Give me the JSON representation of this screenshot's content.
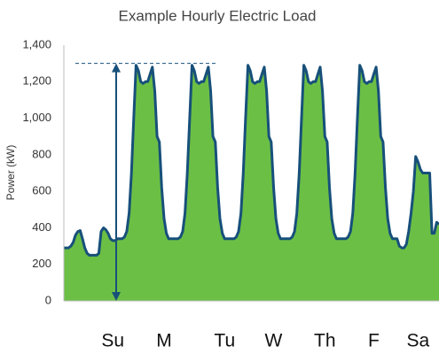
{
  "chart_data": {
    "type": "area",
    "title": "Example Hourly Electric Load",
    "y_label": "Power (kW)",
    "fill_color": "#6cbf45",
    "line_color": "#17507a",
    "reference_line": {
      "value": 1300,
      "color": "#17507a"
    },
    "x": [
      0,
      1,
      2,
      3,
      4,
      5,
      6,
      7,
      8,
      9,
      10,
      11,
      12,
      13,
      14,
      15,
      16,
      17,
      18,
      19,
      20,
      21,
      22,
      23,
      24,
      25,
      26,
      27,
      28,
      29,
      30,
      31,
      32,
      33,
      34,
      35,
      36,
      37,
      38,
      39,
      40,
      41,
      42,
      43,
      44,
      45,
      46,
      47,
      48,
      49,
      50,
      51,
      52,
      53,
      54,
      55,
      56,
      57,
      58,
      59,
      60,
      61,
      62,
      63,
      64,
      65,
      66,
      67,
      68,
      69,
      70,
      71,
      72,
      73,
      74,
      75,
      76,
      77,
      78,
      79,
      80,
      81,
      82,
      83,
      84,
      85,
      86,
      87,
      88,
      89,
      90,
      91,
      92,
      93,
      94,
      95,
      96,
      97,
      98,
      99,
      100,
      101,
      102,
      103,
      104,
      105,
      106,
      107,
      108,
      109,
      110,
      111,
      112,
      113,
      114,
      115,
      116,
      117,
      118,
      119,
      120,
      121,
      122,
      123,
      124,
      125,
      126,
      127,
      128,
      129,
      130,
      131,
      132,
      133,
      134,
      135,
      136,
      137,
      138,
      139,
      140,
      141,
      142,
      143,
      144,
      145,
      146,
      147,
      148,
      149,
      150,
      151,
      152,
      153,
      154,
      155,
      156,
      157,
      158,
      159,
      160,
      161
    ],
    "values": [
      290,
      290,
      290,
      300,
      320,
      360,
      380,
      385,
      340,
      290,
      260,
      250,
      250,
      250,
      250,
      260,
      380,
      400,
      390,
      370,
      340,
      330,
      330,
      340,
      340,
      340,
      350,
      380,
      480,
      700,
      1000,
      1290,
      1260,
      1200,
      1190,
      1200,
      1200,
      1240,
      1280,
      1150,
      900,
      870,
      620,
      450,
      370,
      340,
      340,
      340,
      340,
      340,
      350,
      380,
      480,
      700,
      1000,
      1290,
      1260,
      1200,
      1190,
      1200,
      1200,
      1240,
      1280,
      1150,
      900,
      870,
      620,
      450,
      370,
      340,
      340,
      340,
      340,
      340,
      350,
      380,
      480,
      700,
      1000,
      1290,
      1260,
      1200,
      1190,
      1200,
      1200,
      1240,
      1280,
      1150,
      900,
      870,
      620,
      450,
      370,
      340,
      340,
      340,
      340,
      340,
      350,
      380,
      480,
      700,
      1000,
      1290,
      1260,
      1200,
      1190,
      1200,
      1200,
      1240,
      1280,
      1150,
      900,
      870,
      620,
      450,
      370,
      340,
      340,
      340,
      340,
      340,
      350,
      380,
      480,
      700,
      1000,
      1290,
      1260,
      1200,
      1190,
      1200,
      1200,
      1240,
      1280,
      1150,
      900,
      870,
      620,
      450,
      370,
      340,
      340,
      340,
      300,
      290,
      290,
      310,
      380,
      480,
      600,
      790,
      760,
      720,
      700,
      700,
      700,
      700,
      370,
      370,
      430,
      420
    ],
    "xlim": [
      0,
      161
    ],
    "xticks": [
      {
        "value": 21,
        "label": "Su"
      },
      {
        "value": 43,
        "label": "M"
      },
      {
        "value": 69,
        "label": "Tu"
      },
      {
        "value": 90,
        "label": "W"
      },
      {
        "value": 112,
        "label": "Th"
      },
      {
        "value": 133,
        "label": "F"
      },
      {
        "value": 152,
        "label": "Sa"
      }
    ],
    "ylim": [
      0,
      1400
    ],
    "yticks": [
      0,
      200,
      400,
      600,
      800,
      {
        "value": 1000,
        "label": "1,000"
      },
      {
        "value": 1200,
        "label": "1,200"
      },
      {
        "value": 1400,
        "label": "1,400"
      }
    ]
  }
}
